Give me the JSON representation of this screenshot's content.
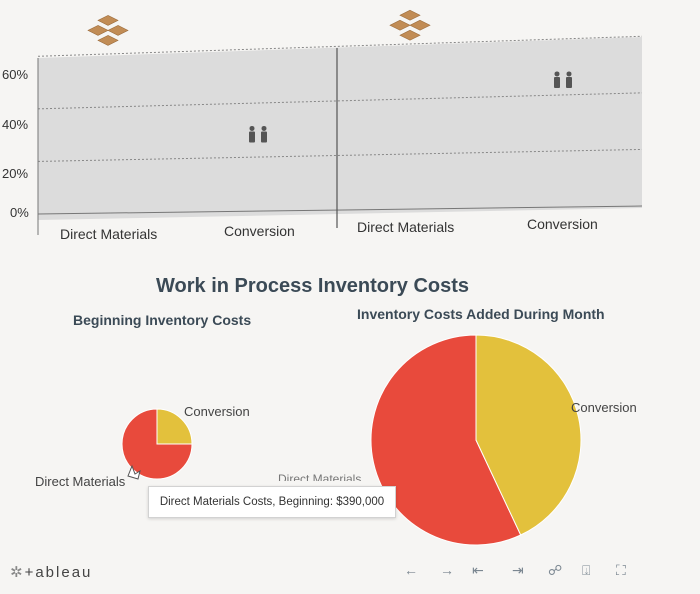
{
  "colors": {
    "direct_materials": "#e84a3c",
    "conversion": "#e3c13c",
    "plot_bg": "#dcdcdc",
    "title": "#3b4a56",
    "chart_icon": "#c18c55",
    "people_icon": "#555555"
  },
  "chart_data": [
    {
      "type": "bar",
      "categories": [
        "Direct Materials",
        "Conversion",
        "Direct Materials",
        "Conversion"
      ],
      "values": [
        67,
        28,
        65,
        45
      ],
      "yticks": [
        "60%",
        "40%",
        "20%",
        "0%"
      ],
      "ylim": [
        0,
        70
      ],
      "grid": true,
      "marker_icons": [
        "boxes-icon",
        "people-icon",
        "boxes-icon",
        "people-icon"
      ]
    },
    {
      "type": "pie",
      "title": "Work in Process Inventory Costs",
      "subtitle": "Beginning Inventory Costs",
      "categories": [
        "Direct Materials",
        "Conversion"
      ],
      "values": [
        75,
        25
      ],
      "tooltip": "Direct Materials Costs, Beginning: $390,000"
    },
    {
      "type": "pie",
      "subtitle": "Inventory Costs Added During Month",
      "categories": [
        "Direct Materials",
        "Conversion"
      ],
      "values": [
        57,
        43
      ]
    }
  ],
  "footer": {
    "logo_text": "+ableau",
    "toolbar_icons": [
      "undo-icon",
      "redo-icon",
      "revert-icon",
      "reset-icon",
      "share-icon",
      "download-icon",
      "fullscreen-icon"
    ]
  }
}
